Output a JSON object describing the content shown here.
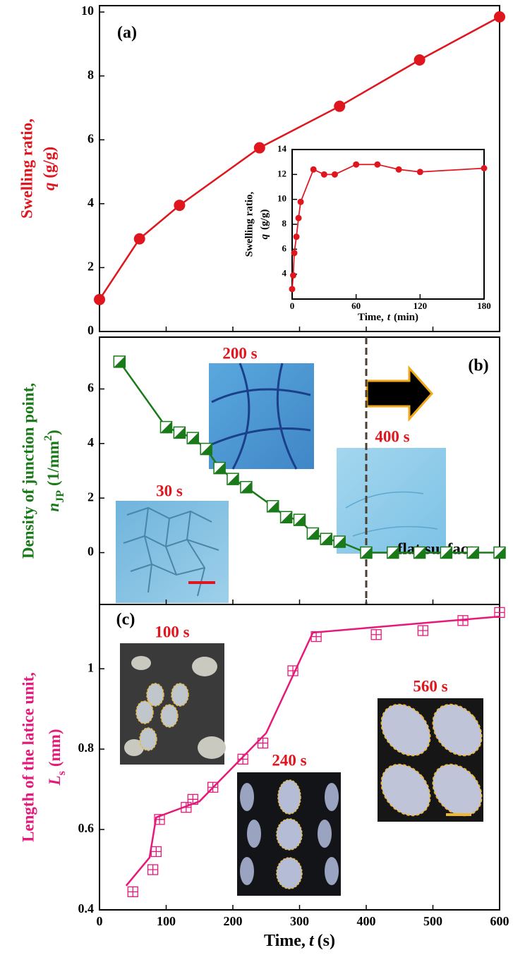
{
  "chart_data": [
    {
      "type": "line",
      "panel_label": "(a)",
      "ylabel": {
        "line1": "Swelling ratio,",
        "symbol": "q",
        "unit": "(g/g)"
      },
      "label_color": "#e0161e",
      "x": [
        0,
        60,
        120,
        240,
        360,
        480,
        600
      ],
      "series": [
        {
          "color": "#e0161e",
          "marker": "circle",
          "values": [
            1.0,
            2.9,
            3.95,
            5.75,
            7.05,
            8.5,
            9.85
          ]
        }
      ],
      "xlim": [
        0,
        600
      ],
      "ylim": [
        0,
        10.2
      ],
      "yticks": [
        0,
        2,
        4,
        6,
        8,
        10
      ]
    },
    {
      "type": "line",
      "xlabel": {
        "text": "Time,",
        "symbol": "t",
        "unit": "(min)"
      },
      "ylabel": {
        "line1": "Swelling ratio,",
        "symbol": "q",
        "unit": "(g/g)"
      },
      "label_color": "#000000",
      "x": [
        0,
        1,
        2,
        4,
        6,
        8,
        20,
        30,
        40,
        60,
        80,
        100,
        120,
        180
      ],
      "series": [
        {
          "color": "#e0161e",
          "marker": "small-circle",
          "values": [
            2.8,
            3.9,
            5.7,
            7.0,
            8.5,
            9.8,
            12.4,
            12.0,
            12.0,
            12.8,
            12.8,
            12.4,
            12.2,
            12.5
          ]
        }
      ],
      "xlim": [
        0,
        180
      ],
      "xticks": [
        0,
        60,
        120,
        180
      ],
      "ylim": [
        2,
        14
      ],
      "yticks": [
        4,
        6,
        8,
        10,
        12,
        14
      ]
    },
    {
      "type": "line",
      "panel_label": "(b)",
      "ylabel": {
        "line1": "Density of junction point,",
        "symbol": "n",
        "sub": "JP",
        "unit": "(1/mm",
        "sup": "2",
        "close": ")"
      },
      "label_color": "#1a7a1a",
      "x": [
        30,
        100,
        120,
        140,
        160,
        180,
        200,
        220,
        260,
        280,
        300,
        320,
        340,
        360,
        400,
        440,
        480,
        520,
        560,
        600
      ],
      "series": [
        {
          "color": "#1a7a1a",
          "marker": "half-square",
          "values": [
            7.0,
            4.6,
            4.4,
            4.2,
            3.8,
            3.1,
            2.7,
            2.4,
            1.7,
            1.3,
            1.2,
            0.7,
            0.5,
            0.4,
            0,
            0,
            0,
            0,
            0,
            0
          ]
        }
      ],
      "vline": 400,
      "annotations": [
        "200 s",
        "400 s",
        "30 s",
        "flat surface"
      ],
      "xlim": [
        0,
        600
      ],
      "ylim": [
        -1.9,
        7.9
      ],
      "yticks": [
        0,
        2,
        4,
        6
      ]
    },
    {
      "type": "line",
      "panel_label": "(c)",
      "xlabel": {
        "text": "Time,",
        "symbol": "t",
        "unit": "(s)"
      },
      "ylabel": {
        "line1": "Length of the latice unit,",
        "symbol": "L",
        "sub": "s",
        "unit": "(mm)"
      },
      "label_color": "#e6197a",
      "series": [
        {
          "color": "#e6197a",
          "marker": "crossed-square",
          "line": false,
          "x": [
            50,
            80,
            85,
            90,
            130,
            140,
            170,
            215,
            245,
            290,
            325,
            415,
            485,
            545,
            600
          ],
          "values": [
            0.445,
            0.5,
            0.545,
            0.625,
            0.655,
            0.675,
            0.705,
            0.775,
            0.815,
            0.995,
            1.08,
            1.085,
            1.095,
            1.12,
            1.14
          ]
        },
        {
          "color": "#e6197a",
          "marker": "none",
          "x": [
            40,
            75,
            85,
            150,
            250,
            320,
            600
          ],
          "values": [
            0.46,
            0.53,
            0.63,
            0.67,
            0.84,
            1.09,
            1.13
          ]
        }
      ],
      "annotations": [
        "100 s",
        "240 s",
        "560 s"
      ],
      "xlim": [
        0,
        600
      ],
      "xticks": [
        0,
        100,
        200,
        300,
        400,
        500,
        600
      ],
      "ylim": [
        0.4,
        1.16
      ],
      "yticks": [
        0.4,
        0.6,
        0.8,
        1
      ]
    }
  ]
}
